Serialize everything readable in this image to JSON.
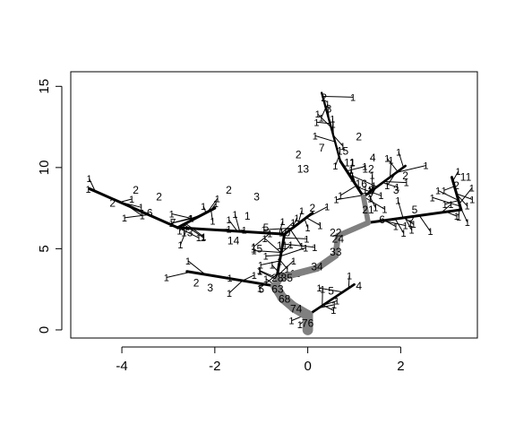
{
  "chart_data": {
    "type": "tree",
    "title": "",
    "xlabel": "",
    "ylabel": "",
    "xlim": [
      -5.1,
      3.65
    ],
    "ylim": [
      -0.5,
      15.9
    ],
    "xticks": [
      -4,
      -2,
      0,
      2
    ],
    "yticks": [
      0,
      5,
      10,
      15
    ],
    "x_tick_labels": [
      "-4",
      "-2",
      "0",
      "2"
    ],
    "y_tick_labels": [
      "0",
      "5",
      "10",
      "15"
    ],
    "colors": {
      "trunk": "#808080",
      "branch": "#000000",
      "frame": "#000000"
    },
    "trunk": [
      {
        "from": [
          0,
          0
        ],
        "to": [
          0,
          0.9
        ],
        "count": 76
      },
      {
        "from": [
          0,
          0.9
        ],
        "to": [
          -0.3,
          1.4
        ],
        "count": 74
      },
      {
        "from": [
          -0.3,
          1.4
        ],
        "to": [
          -0.55,
          2.0
        ],
        "count": 68
      },
      {
        "from": [
          -0.55,
          2.0
        ],
        "to": [
          -0.7,
          2.7
        ],
        "count": 63
      },
      {
        "from": [
          -0.7,
          2.7
        ],
        "to": [
          -0.6,
          3.2
        ],
        "count": 35
      },
      {
        "from": [
          -0.6,
          3.2
        ],
        "to": [
          0.2,
          3.8
        ],
        "count": 34
      },
      {
        "from": [
          0.2,
          3.8
        ],
        "to": [
          0.6,
          4.6
        ],
        "count": 33
      },
      {
        "from": [
          0.6,
          4.6
        ],
        "to": [
          0.65,
          5.8
        ],
        "count": 24
      },
      {
        "from": [
          0.65,
          5.8
        ],
        "to": [
          1.3,
          6.6
        ],
        "count": 21
      },
      {
        "from": [
          1.3,
          6.6
        ],
        "to": [
          1.2,
          8.2
        ],
        "count": 18
      }
    ],
    "branches": [
      {
        "from": [
          -0.7,
          2.7
        ],
        "to": [
          -0.6,
          4.3
        ],
        "count": 28
      },
      {
        "from": [
          -0.6,
          4.3
        ],
        "to": [
          -0.5,
          5.9
        ],
        "count": 11
      },
      {
        "from": [
          -0.5,
          5.9
        ],
        "to": [
          -2.8,
          6.3
        ],
        "count": 14
      },
      {
        "from": [
          -2.8,
          6.3
        ],
        "to": [
          -4.7,
          8.7
        ],
        "count": 7
      },
      {
        "from": [
          -2.8,
          6.3
        ],
        "to": [
          -2.0,
          7.5
        ],
        "count": 5
      },
      {
        "from": [
          -0.5,
          5.9
        ],
        "to": [
          0.1,
          7.2
        ],
        "count": 10
      },
      {
        "from": [
          1.3,
          6.6
        ],
        "to": [
          3.3,
          7.4
        ],
        "count": 6
      },
      {
        "from": [
          3.3,
          7.4
        ],
        "to": [
          3.1,
          9.4
        ],
        "count": 5
      },
      {
        "from": [
          1.2,
          8.2
        ],
        "to": [
          0.7,
          10.4
        ],
        "count": 15
      },
      {
        "from": [
          0.7,
          10.4
        ],
        "to": [
          0.3,
          14.6
        ],
        "count": 3
      },
      {
        "from": [
          1.2,
          8.2
        ],
        "to": [
          2.1,
          10.1
        ],
        "count": 4
      },
      {
        "from": [
          -0.7,
          2.7
        ],
        "to": [
          -2.6,
          3.6
        ],
        "count": 6
      },
      {
        "from": [
          0,
          0.9
        ],
        "to": [
          1.0,
          2.8
        ],
        "count": 4
      }
    ],
    "count_labels": [
      {
        "x": 0,
        "y": 0.4,
        "text": "76"
      },
      {
        "x": -0.25,
        "y": 1.3,
        "text": "74"
      },
      {
        "x": -0.5,
        "y": 1.9,
        "text": "68"
      },
      {
        "x": -0.65,
        "y": 2.5,
        "text": "63"
      },
      {
        "x": -0.65,
        "y": 3.2,
        "text": "28"
      },
      {
        "x": -0.45,
        "y": 3.2,
        "text": "35"
      },
      {
        "x": 0.2,
        "y": 3.9,
        "text": "34"
      },
      {
        "x": 0.6,
        "y": 4.8,
        "text": "33"
      },
      {
        "x": 0.65,
        "y": 5.6,
        "text": "24"
      },
      {
        "x": 1.3,
        "y": 7.4,
        "text": "21"
      },
      {
        "x": 1.3,
        "y": 8.6,
        "text": "18"
      },
      {
        "x": 1.15,
        "y": 9.0,
        "text": "16"
      },
      {
        "x": 0.75,
        "y": 11.0,
        "text": "15"
      },
      {
        "x": -0.55,
        "y": 5.2,
        "text": "11"
      },
      {
        "x": -0.5,
        "y": 6.0,
        "text": "10"
      },
      {
        "x": -1.1,
        "y": 5.0,
        "text": "15"
      },
      {
        "x": -1.6,
        "y": 5.5,
        "text": "14"
      },
      {
        "x": -2.6,
        "y": 6.0,
        "text": "13"
      },
      {
        "x": -2.9,
        "y": 6.6,
        "text": "7"
      },
      {
        "x": -3.4,
        "y": 7.2,
        "text": "6"
      },
      {
        "x": -0.9,
        "y": 6.3,
        "text": "5"
      },
      {
        "x": 1.6,
        "y": 6.8,
        "text": "6"
      },
      {
        "x": 2.3,
        "y": 7.4,
        "text": "5"
      },
      {
        "x": 1.9,
        "y": 8.6,
        "text": "3"
      },
      {
        "x": 1.4,
        "y": 10.6,
        "text": "4"
      },
      {
        "x": 0.45,
        "y": 13.6,
        "text": "3"
      },
      {
        "x": 0.35,
        "y": 14.3,
        "text": "2"
      },
      {
        "x": -2.1,
        "y": 2.6,
        "text": "3"
      },
      {
        "x": -1.0,
        "y": 2.5,
        "text": "5"
      },
      {
        "x": 1.1,
        "y": 2.7,
        "text": "4"
      },
      {
        "x": 0.5,
        "y": 2.4,
        "text": "5"
      },
      {
        "x": -4.2,
        "y": 7.8,
        "text": "2"
      },
      {
        "x": -3.7,
        "y": 8.6,
        "text": "2"
      },
      {
        "x": -3.2,
        "y": 8.2,
        "text": "2"
      },
      {
        "x": -2.4,
        "y": 2.9,
        "text": "2"
      },
      {
        "x": -1.7,
        "y": 8.6,
        "text": "2"
      },
      {
        "x": 0.1,
        "y": 7.5,
        "text": "2"
      },
      {
        "x": 2.1,
        "y": 9.5,
        "text": "2"
      },
      {
        "x": 3.2,
        "y": 8.9,
        "text": "2"
      },
      {
        "x": 1.1,
        "y": 11.9,
        "text": "2"
      },
      {
        "x": -0.2,
        "y": 10.8,
        "text": "2"
      },
      {
        "x": 0.3,
        "y": 11.2,
        "text": "7"
      },
      {
        "x": 1.3,
        "y": 9.9,
        "text": "12"
      },
      {
        "x": 0.9,
        "y": 10.3,
        "text": "11"
      },
      {
        "x": -0.1,
        "y": 9.9,
        "text": "13"
      },
      {
        "x": -1.1,
        "y": 8.2,
        "text": "3"
      },
      {
        "x": -1.3,
        "y": 7.0,
        "text": "1"
      },
      {
        "x": 0.6,
        "y": 6.0,
        "text": "22"
      },
      {
        "x": 3.4,
        "y": 9.4,
        "text": "11"
      }
    ],
    "tip_count": 120
  }
}
